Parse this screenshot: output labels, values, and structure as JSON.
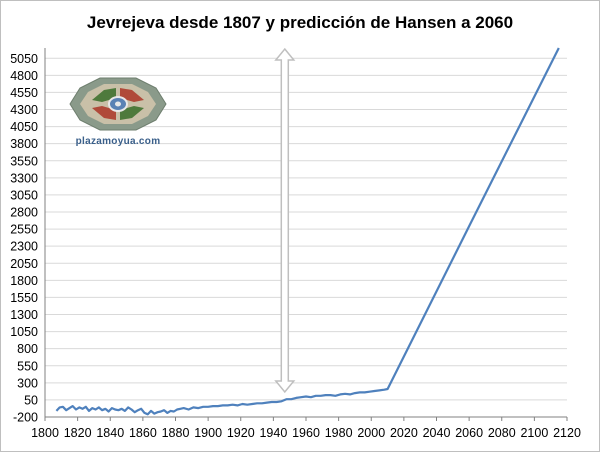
{
  "colors": {
    "series": "#4f81bd",
    "grid": "#d9d9d9",
    "arrow_fill": "#ffffff",
    "arrow_outline": "#bfbfbf",
    "logo_ring": "#7a8a7a",
    "logo_green": "#4e7a3c",
    "logo_red": "#b04a3a",
    "logo_center": "#5a82b4"
  },
  "logo": {
    "caption": "plazamoyua.com",
    "icon": "garden-plaza-emblem-icon"
  },
  "chart_data": {
    "type": "line",
    "title": "Jevrejeva desde 1807 y predicción de Hansen a 2060",
    "xlabel": "",
    "ylabel": "",
    "xlim": [
      1800,
      2120
    ],
    "ylim": [
      -200,
      5200
    ],
    "x_ticks": [
      1800,
      1820,
      1840,
      1860,
      1880,
      1900,
      1920,
      1940,
      1960,
      1980,
      2000,
      2020,
      2040,
      2060,
      2080,
      2100,
      2120
    ],
    "y_ticks": [
      -200,
      50,
      300,
      550,
      800,
      1050,
      1300,
      1550,
      1800,
      2050,
      2300,
      2550,
      2800,
      3050,
      3300,
      3550,
      3800,
      4050,
      4300,
      4550,
      4800,
      5050
    ],
    "grid": "horizontal",
    "legend": "none",
    "annotation": "vertical double-headed arrow spanning the plot height at about 1947",
    "arrow_x": 1947,
    "series": [
      {
        "x": [
          1807,
          1809,
          1811,
          1813,
          1815,
          1817,
          1819,
          1821,
          1823,
          1825,
          1827,
          1829,
          1831,
          1833,
          1835,
          1837,
          1839,
          1841,
          1843,
          1845,
          1847,
          1849,
          1851,
          1853,
          1855,
          1857,
          1859,
          1861,
          1863,
          1865,
          1867,
          1869,
          1871,
          1873,
          1875,
          1877,
          1879,
          1881,
          1883,
          1885,
          1888,
          1891,
          1894,
          1897,
          1900,
          1903,
          1906,
          1909,
          1912,
          1915,
          1918,
          1921,
          1924,
          1927,
          1930,
          1933,
          1936,
          1939,
          1942,
          1945,
          1948,
          1951,
          1954,
          1957,
          1960,
          1963,
          1966,
          1969,
          1972,
          1975,
          1978,
          1981,
          1984,
          1987,
          1990,
          1993,
          1996,
          1999,
          2002,
          2005,
          2008,
          2010,
          2060,
          2115
        ],
        "y": [
          -110,
          -60,
          -50,
          -100,
          -70,
          -40,
          -90,
          -60,
          -80,
          -50,
          -110,
          -70,
          -90,
          -60,
          -100,
          -80,
          -120,
          -70,
          -90,
          -100,
          -80,
          -110,
          -60,
          -90,
          -130,
          -100,
          -80,
          -140,
          -160,
          -110,
          -150,
          -130,
          -120,
          -100,
          -140,
          -110,
          -120,
          -90,
          -80,
          -70,
          -90,
          -60,
          -70,
          -50,
          -50,
          -40,
          -40,
          -30,
          -30,
          -20,
          -30,
          -10,
          -20,
          -10,
          0,
          0,
          10,
          20,
          20,
          30,
          60,
          60,
          80,
          90,
          100,
          90,
          110,
          110,
          120,
          120,
          110,
          130,
          140,
          130,
          150,
          160,
          160,
          170,
          180,
          190,
          200,
          210,
          2590,
          5200
        ]
      }
    ]
  }
}
